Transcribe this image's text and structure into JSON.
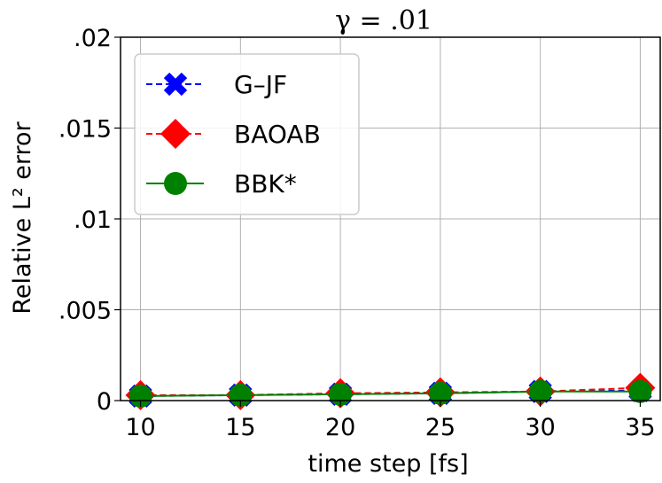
{
  "chart_data": {
    "type": "line",
    "title": "γ = .01",
    "xlabel": "time step [fs]",
    "ylabel": "Relative L² error",
    "x": [
      10,
      15,
      20,
      25,
      30,
      35
    ],
    "x_tick_labels": [
      "10",
      "15",
      "20",
      "25",
      "30",
      "35"
    ],
    "xlim": [
      9,
      36
    ],
    "ylim": [
      0,
      0.02
    ],
    "y_ticks": [
      0,
      0.005,
      0.01,
      0.015,
      0.02
    ],
    "y_tick_labels": [
      "0",
      ".005",
      ".01",
      ".015",
      ".02"
    ],
    "grid": true,
    "legend_position": "top-left",
    "series": [
      {
        "name": "G–JF",
        "values": [
          0.00025,
          0.0003,
          0.00035,
          0.0004,
          0.0005,
          0.00055
        ],
        "color": "#0000ff",
        "marker": "x",
        "linestyle": "dashed"
      },
      {
        "name": "BAOAB",
        "values": [
          0.0003,
          0.0003,
          0.0004,
          0.00045,
          0.0005,
          0.0007
        ],
        "color": "#ff0000",
        "marker": "diamond",
        "linestyle": "dashed"
      },
      {
        "name": "BBK*",
        "values": [
          0.00025,
          0.0003,
          0.00035,
          0.0004,
          0.0005,
          0.0005
        ],
        "color": "#008000",
        "marker": "circle",
        "linestyle": "solid"
      }
    ]
  }
}
